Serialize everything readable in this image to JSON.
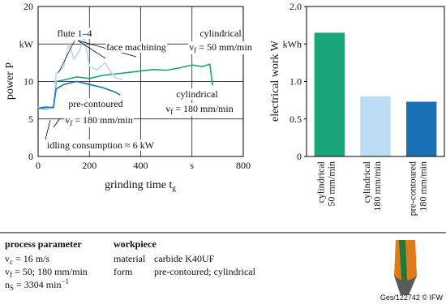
{
  "chart_data": [
    {
      "type": "line",
      "y_label": "power P",
      "x_label": {
        "base": "grinding time t",
        "sub": "g"
      },
      "xlim": [
        0,
        800
      ],
      "xticks": [
        0,
        200,
        400,
        {
          "value": 600,
          "label": "s"
        },
        800
      ],
      "ylim": [
        0,
        20
      ],
      "yticks": [
        0,
        5,
        10,
        {
          "value": 15,
          "label": "kW"
        },
        20
      ],
      "grid": true,
      "series": [
        {
          "color": "#1aa67a",
          "x": [
            0,
            30,
            60,
            70,
            100,
            150,
            200,
            250,
            300,
            350,
            400,
            450,
            500,
            550,
            600,
            640,
            670,
            680
          ],
          "values": [
            6.5,
            6.3,
            6.6,
            10,
            10.2,
            10.6,
            10.4,
            10.8,
            11,
            11.2,
            11.4,
            11.6,
            11.5,
            11.8,
            12.2,
            12,
            12.3,
            9.5
          ]
        },
        {
          "color": "#b5d6f2",
          "x": [
            0,
            30,
            60,
            70,
            100,
            120,
            140,
            160,
            180,
            200,
            230,
            260,
            300,
            330
          ],
          "values": [
            6.6,
            6.4,
            6.5,
            11,
            12,
            15,
            13,
            14,
            16,
            12,
            11.5,
            12.5,
            10.5,
            10.3
          ]
        },
        {
          "color": "#1a6fb5",
          "x": [
            0,
            30,
            60,
            70,
            100,
            150,
            200,
            250,
            300,
            320
          ],
          "values": [
            6.4,
            6.6,
            6.5,
            9,
            9.6,
            10,
            9.6,
            9.2,
            8.6,
            8.2
          ]
        }
      ],
      "annotations": [
        {
          "base": "flute 1–4"
        },
        {
          "base": "face machining"
        },
        {
          "base": "cylindrical"
        },
        {
          "base": "v",
          "sub": "f",
          "rest": " = 50 mm/min"
        },
        {
          "base": "pre-contoured"
        },
        {
          "base": "v",
          "sub": "f",
          "rest": " = 180 mm/min"
        },
        {
          "base": "cylindrical"
        },
        {
          "base": "v",
          "sub": "f",
          "rest": " = 180 mm/min"
        },
        {
          "base": "idling consumption ≈ 6 kW"
        }
      ]
    },
    {
      "type": "bar",
      "y_label": "electrical work W",
      "categories": [
        "cylindrical 50 mm/min",
        "cylindrical 180 mm/min",
        "pre-contoured 180 mm/min"
      ],
      "values": [
        1.65,
        0.8,
        0.73
      ],
      "colors": [
        "#1aa67a",
        "#bcdcf5",
        "#1a6fb5"
      ],
      "ylim": [
        0,
        2
      ],
      "yticks": [
        0,
        0.5,
        {
          "value": 1,
          "label": "1.0"
        },
        {
          "value": 1.5,
          "label": "kWh"
        },
        {
          "value": 2,
          "label": "2.0"
        }
      ]
    }
  ],
  "parameters": {
    "process_title": "process parameter",
    "process": [
      {
        "base": "v",
        "sub": "c",
        "rest": " = 16 m/s"
      },
      {
        "base": "v",
        "sub": "f",
        "rest": " = 50; 180 mm/min"
      },
      {
        "base": "n",
        "sub": "S",
        "rest": " = 3304 min",
        "sup": "−1"
      }
    ],
    "workpiece_title": "workpiece",
    "workpiece": [
      [
        "material",
        "carbide K40UF"
      ],
      [
        "form",
        "pre-contoured; cylindrical"
      ]
    ]
  },
  "credit": "Ges/122742 © IFW"
}
